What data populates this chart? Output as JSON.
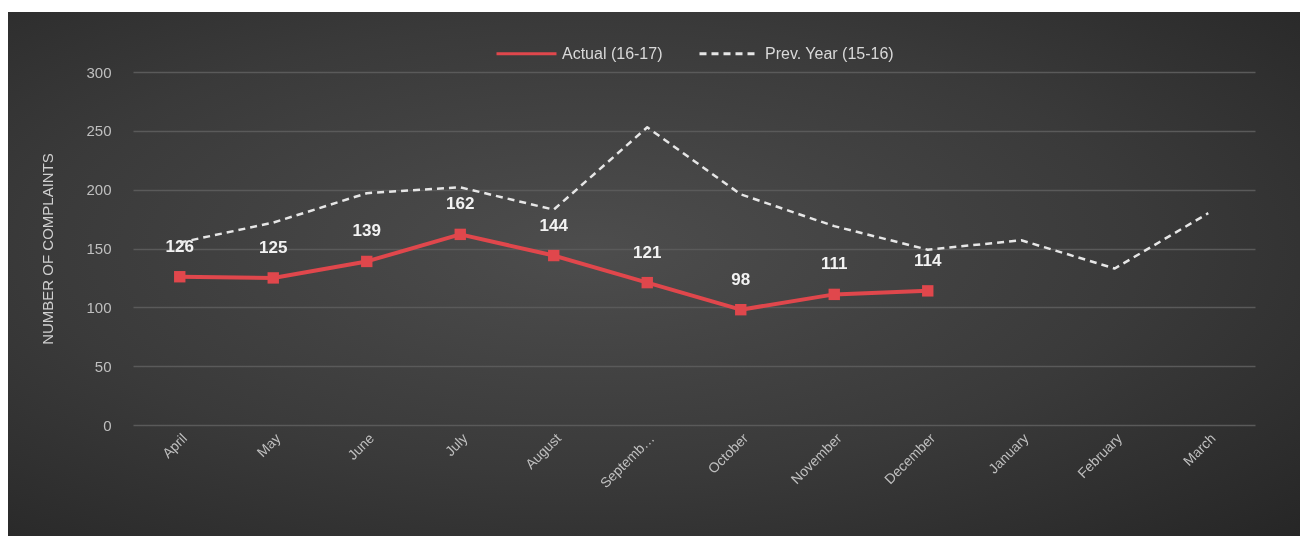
{
  "chart_data": {
    "type": "line",
    "ylabel": "NUMBER OF COMPLAINTS",
    "categories": [
      "April",
      "May",
      "June",
      "July",
      "August",
      "Septemb…",
      "October",
      "November",
      "December",
      "January",
      "February",
      "March"
    ],
    "ylim": [
      0,
      300
    ],
    "yticks": [
      0,
      50,
      100,
      150,
      200,
      250,
      300
    ],
    "grid": "y",
    "legend": "top",
    "series": [
      {
        "name": "Actual (16-17)",
        "color": "#e0474c",
        "marker": "square",
        "line_style": "solid",
        "data_labels": true,
        "values": [
          126,
          125,
          139,
          162,
          144,
          121,
          98,
          111,
          114,
          null,
          null,
          null
        ]
      },
      {
        "name": "Prev. Year (15-16)",
        "color": "#e6e6e6",
        "marker": "none",
        "line_style": "dashed",
        "values": [
          155,
          172,
          197,
          202,
          183,
          253,
          196,
          169,
          149,
          157,
          133,
          180
        ]
      }
    ]
  }
}
